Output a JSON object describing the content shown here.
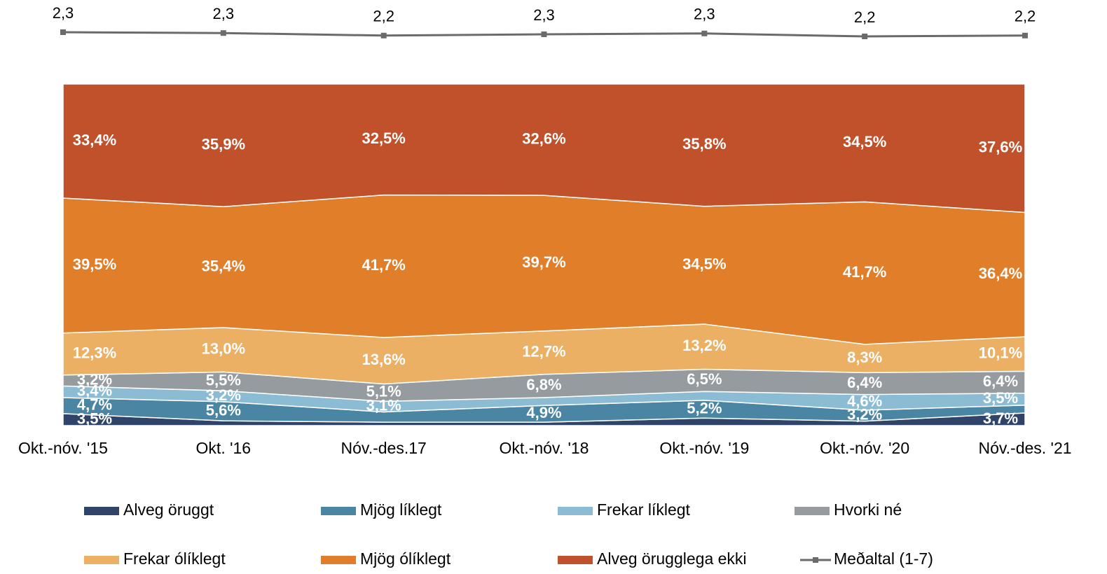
{
  "chart_data": {
    "type": "area",
    "stacked": true,
    "categories": [
      "Okt.-nóv. '15",
      "Okt. '16",
      "Nóv.-des.17",
      "Okt.-nóv. '18",
      "Okt.-nóv. '19",
      "Okt.-nóv. '20",
      "Nóv.-des. '21"
    ],
    "series": [
      {
        "name": "Alveg öruggt",
        "color": "#2f4468",
        "values": [
          3.5,
          1.4,
          1.0,
          1.0,
          2.2,
          1.3,
          3.7
        ],
        "value_labels": [
          "3,5%",
          null,
          null,
          null,
          null,
          null,
          "3,7%"
        ]
      },
      {
        "name": "Mjög líklegt",
        "color": "#4a86a4",
        "values": [
          4.7,
          5.6,
          3.0,
          4.9,
          5.2,
          3.2,
          2.3
        ],
        "value_labels": [
          "4,7%",
          "5,6%",
          null,
          "4,9%",
          "5,2%",
          "3,2%",
          null
        ]
      },
      {
        "name": "Frekar líklegt",
        "color": "#8bbcd4",
        "values": [
          3.4,
          3.2,
          3.1,
          2.3,
          2.6,
          4.6,
          3.5
        ],
        "value_labels": [
          "3,4%",
          "3,2%",
          "3,1%",
          null,
          null,
          "4,6%",
          "3,5%"
        ]
      },
      {
        "name": "Hvorki né",
        "color": "#959b9e",
        "values": [
          3.2,
          5.5,
          5.1,
          6.8,
          6.5,
          6.4,
          6.4
        ],
        "value_labels": [
          "3,2%",
          "5,5%",
          "5,1%",
          "6,8%",
          "6,5%",
          "6,4%",
          "6,4%"
        ]
      },
      {
        "name": "Frekar ólíklegt",
        "color": "#ebb063",
        "values": [
          12.3,
          13.0,
          13.6,
          12.7,
          13.2,
          8.3,
          10.1
        ],
        "value_labels": [
          "12,3%",
          "13,0%",
          "13,6%",
          "12,7%",
          "13,2%",
          "8,3%",
          "10,1%"
        ]
      },
      {
        "name": "Mjög ólíklegt",
        "color": "#e07e2a",
        "values": [
          39.5,
          35.4,
          41.7,
          39.7,
          34.5,
          41.7,
          36.4
        ],
        "value_labels": [
          "39,5%",
          "35,4%",
          "41,7%",
          "39,7%",
          "34,5%",
          "41,7%",
          "36,4%"
        ]
      },
      {
        "name": "Alveg örugglega ekki",
        "color": "#c0512a",
        "values": [
          33.4,
          35.9,
          32.5,
          32.6,
          35.8,
          34.5,
          37.6
        ],
        "value_labels": [
          "33,4%",
          "35,9%",
          "32,5%",
          "32,6%",
          "35,8%",
          "34,5%",
          "37,6%"
        ]
      },
      {
        "name": "Meðaltal (1-7)",
        "type": "line",
        "color": "#6b6b6b",
        "values": [
          2.32,
          2.3,
          2.24,
          2.27,
          2.29,
          2.22,
          2.24
        ],
        "value_labels": [
          "2,3",
          "2,3",
          "2,2",
          "2,3",
          "2,3",
          "2,2",
          "2,2"
        ]
      }
    ]
  }
}
